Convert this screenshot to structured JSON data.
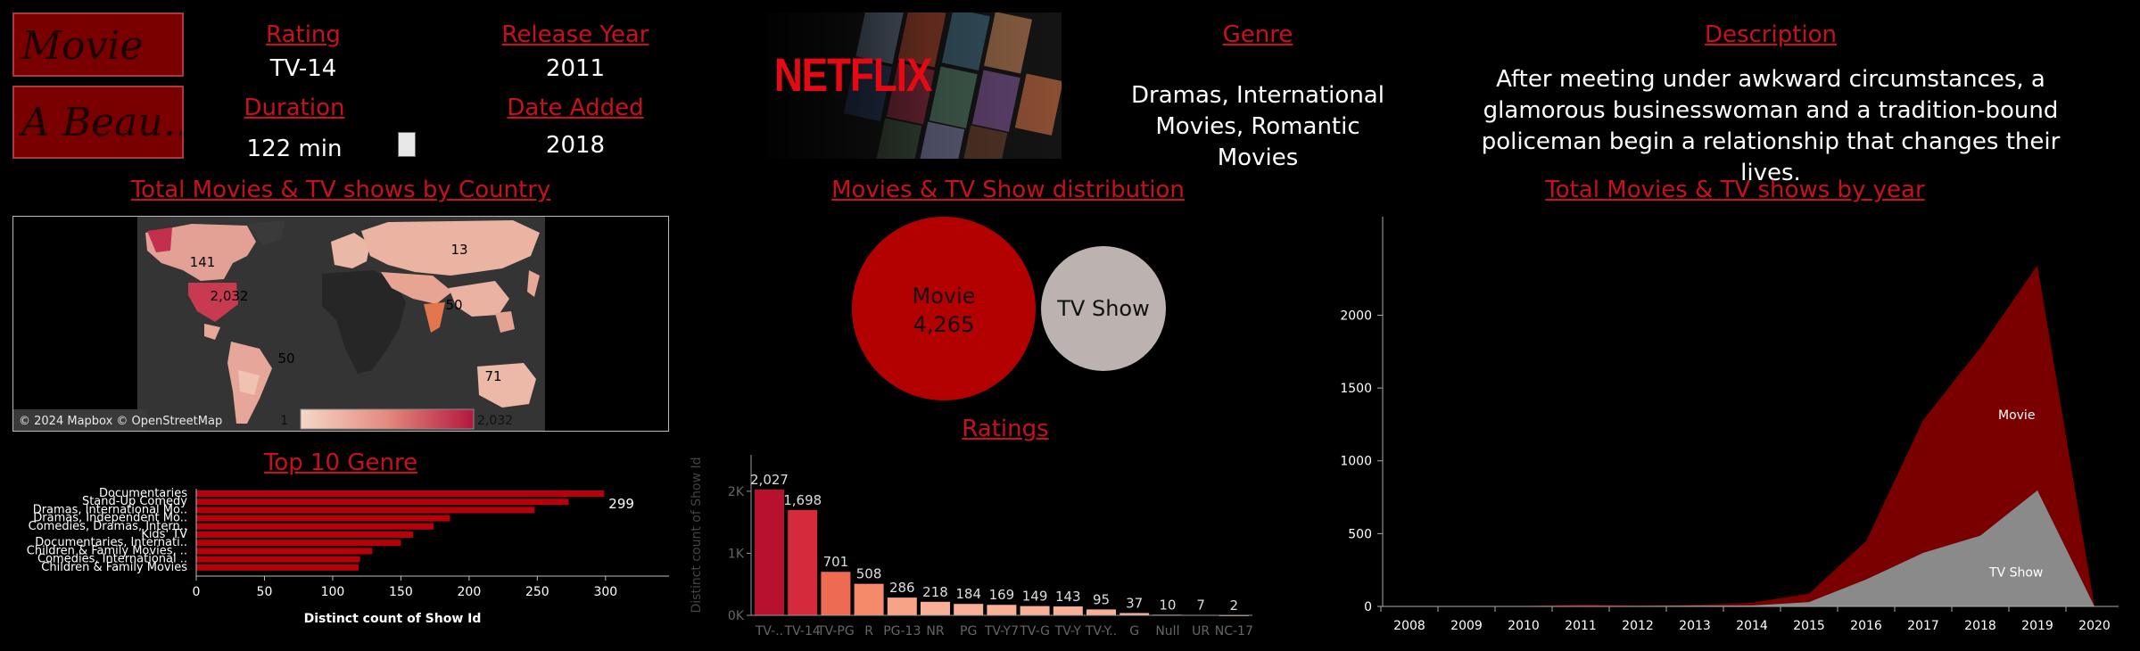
{
  "header": {
    "type_label": "Movie",
    "title_label": "A Beau..",
    "rating_title": "Rating",
    "rating_value": "TV-14",
    "release_title": "Release Year",
    "release_value": "2011",
    "duration_title": "Duration",
    "duration_value": "122 min",
    "date_added_title": "Date Added",
    "date_added_value": "2018",
    "logo_text": "NETFLIX",
    "genre_title": "Genre",
    "genre_value": "Dramas, International Movies, Romantic Movies",
    "description_title": "Description",
    "description_value": "After meeting under awkward circumstances, a glamorous businesswoman and a tradition-bound policeman begin a relationship that changes their lives."
  },
  "colors": {
    "accent": "#c8101e",
    "dark_red": "#7a0000",
    "bar_red": "#b8000a",
    "gray": "#bcb3b0"
  },
  "chart_data": [
    {
      "type": "map",
      "title": "Total Movies & TV shows by Country",
      "labels": [
        "141",
        "13",
        "2,032",
        "50",
        "50",
        "71"
      ],
      "legend_min": "1",
      "legend_max": "2,032",
      "attribution": "© 2024 Mapbox © OpenStreetMap"
    },
    {
      "type": "bubble",
      "title": "Movies & TV Show distribution",
      "bubbles": [
        {
          "name": "Movie",
          "value": 4265,
          "label": "4,265"
        },
        {
          "name": "TV Show",
          "value": 1970,
          "label": ""
        }
      ]
    },
    {
      "type": "bar",
      "orientation": "horizontal",
      "title": "Top 10 Genre",
      "categories": [
        "Documentaries",
        "Stand-Up Comedy",
        "Dramas, International Mo..",
        "Dramas, Independent Mo..",
        "Comedies, Dramas, Intern..",
        "Kids' TV",
        "Documentaries, Internati..",
        "Children & Family Movies, ..",
        "Comedies, International ..",
        "Children & Family Movies"
      ],
      "values": [
        299,
        273,
        248,
        186,
        174,
        159,
        150,
        129,
        120,
        119
      ],
      "top_label": "299",
      "xlabel": "Distinct count of Show Id",
      "xlim": [
        0,
        340
      ],
      "xticks": [
        "0",
        "50",
        "100",
        "150",
        "200",
        "250",
        "300"
      ]
    },
    {
      "type": "bar",
      "title": "Ratings",
      "categories": [
        "TV-..",
        "TV-14",
        "TV-PG",
        "R",
        "PG-13",
        "NR",
        "PG",
        "TV-Y7",
        "TV-G",
        "TV-Y",
        "TV-Y..",
        "G",
        "Null",
        "UR",
        "NC-17"
      ],
      "values": [
        2027,
        1698,
        701,
        508,
        286,
        218,
        184,
        169,
        149,
        143,
        95,
        37,
        10,
        7,
        2
      ],
      "labels": [
        "2,027",
        "1,698",
        "701",
        "508",
        "286",
        "218",
        "184",
        "169",
        "149",
        "143",
        "95",
        "37",
        "10",
        "7",
        "2"
      ],
      "ylabel": "Distinct count of Show Id",
      "yticks": [
        "0K",
        "1K",
        "2K"
      ],
      "ylim": [
        0,
        2300
      ]
    },
    {
      "type": "area",
      "title": "Total Movies & TV shows by year",
      "x": [
        "2008",
        "2009",
        "2010",
        "2011",
        "2012",
        "2013",
        "2014",
        "2015",
        "2016",
        "2017",
        "2018",
        "2019",
        "2020"
      ],
      "series": [
        {
          "name": "Movie",
          "values": [
            1,
            2,
            1,
            13,
            4,
            6,
            19,
            58,
            264,
            913,
            1290,
            1546,
            0
          ]
        },
        {
          "name": "TV Show",
          "values": [
            1,
            0,
            1,
            0,
            3,
            5,
            6,
            30,
            185,
            368,
            486,
            797,
            0
          ]
        }
      ],
      "yticks": [
        "0",
        "500",
        "1000",
        "1500",
        "2000"
      ],
      "ylim": [
        0,
        2450
      ]
    }
  ]
}
